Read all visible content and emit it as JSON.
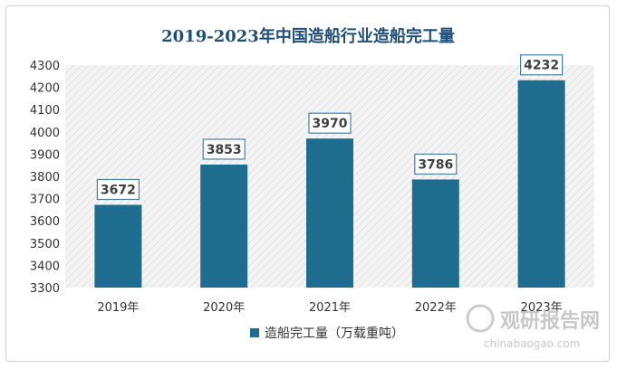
{
  "chart_data": {
    "type": "bar",
    "title": "2019-2023年中国造船行业造船完工量",
    "categories": [
      "2019年",
      "2020年",
      "2021年",
      "2022年",
      "2023年"
    ],
    "series": [
      {
        "name": "造船完工量（万载重吨）",
        "values": [
          3672,
          3853,
          3970,
          3786,
          4232
        ]
      }
    ],
    "ylim": [
      3300,
      4300
    ],
    "yticks": [
      3300,
      3400,
      3500,
      3600,
      3700,
      3800,
      3900,
      4000,
      4100,
      4200,
      4300
    ],
    "legend_position": "bottom",
    "grid": false,
    "bar_color": "#1e6d8f",
    "plot_background": "hatched-light-gray"
  },
  "watermark": {
    "brand": "观研报告网",
    "url": "chinabaogao.com"
  }
}
